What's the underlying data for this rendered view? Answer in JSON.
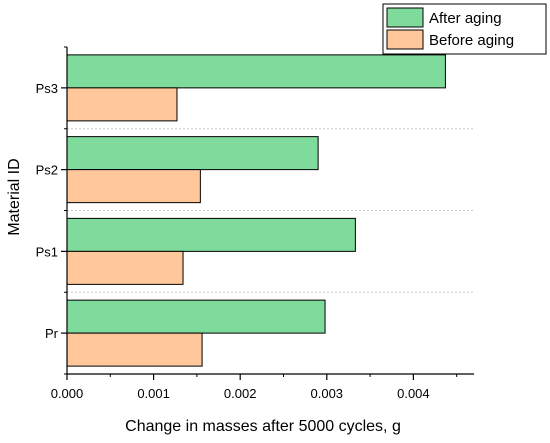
{
  "chart_data": {
    "type": "bar",
    "orientation": "horizontal",
    "categories": [
      "Pr",
      "Ps1",
      "Ps2",
      "Ps3"
    ],
    "series": [
      {
        "name": "After aging",
        "color": "#7FDB9B",
        "values": [
          0.00298,
          0.00333,
          0.0029,
          0.00437
        ]
      },
      {
        "name": "Before aging",
        "color": "#FFC79A",
        "values": [
          0.00156,
          0.00134,
          0.00154,
          0.00127
        ]
      }
    ],
    "xlabel": "Change in masses after 5000 cycles, g",
    "ylabel": "Material ID",
    "xlim": [
      0,
      0.0047
    ],
    "xticks": [
      "0.000",
      "0.001",
      "0.002",
      "0.003",
      "0.004"
    ],
    "grid": "dotted separators between categories",
    "legend": {
      "placement": "top-right",
      "entries": [
        "After aging",
        "Before aging"
      ]
    }
  }
}
